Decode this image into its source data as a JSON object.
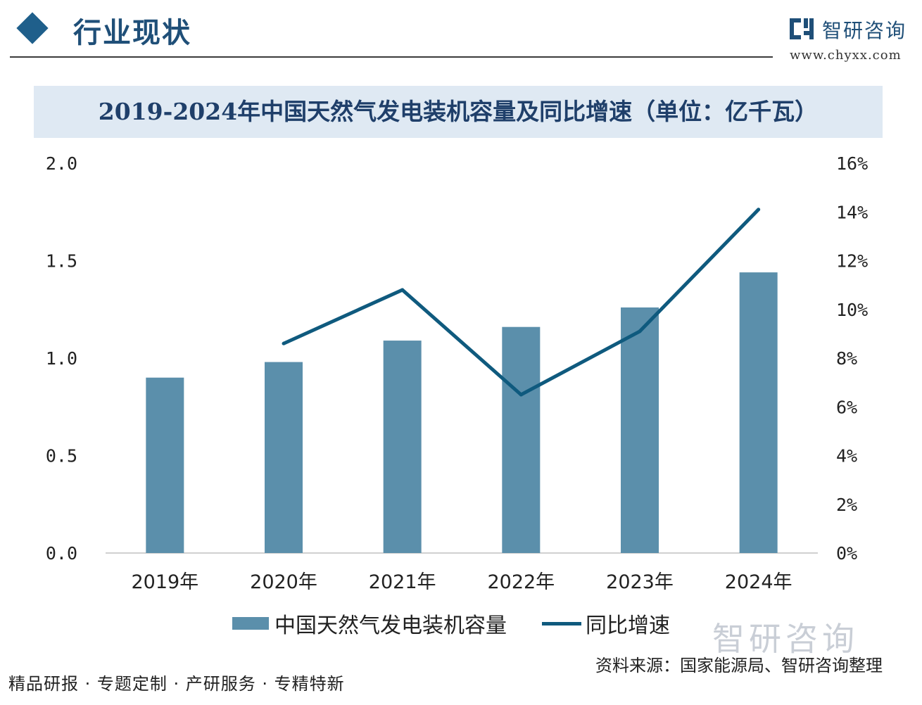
{
  "header": {
    "section_title": "行业现状",
    "brand": "智研咨询",
    "url": "www.chyxx.com",
    "colors": {
      "accent": "#1f5f8b"
    }
  },
  "chart_data": {
    "type": "bar",
    "title": "2019-2024年中国天然气发电装机容量及同比增速（单位：亿千瓦）",
    "categories": [
      "2019年",
      "2020年",
      "2021年",
      "2022年",
      "2023年",
      "2024年"
    ],
    "series": [
      {
        "name": "中国天然气发电装机容量",
        "type": "bar",
        "axis": "left",
        "values": [
          0.9,
          0.98,
          1.09,
          1.16,
          1.26,
          1.44
        ],
        "color": "#5b8fab"
      },
      {
        "name": "同比增速",
        "type": "line",
        "axis": "right",
        "values": [
          null,
          8.6,
          10.8,
          6.5,
          9.1,
          14.1
        ],
        "color": "#0f5a7e"
      }
    ],
    "y_left": {
      "min": 0,
      "max": 2.0,
      "ticks": [
        "0.0",
        "0.5",
        "1.0",
        "1.5",
        "2.0"
      ]
    },
    "y_right": {
      "min": 0,
      "max": 16,
      "ticks": [
        "0%",
        "2%",
        "4%",
        "6%",
        "8%",
        "10%",
        "12%",
        "14%",
        "16%"
      ]
    },
    "grid": false,
    "legend": "bottom"
  },
  "footer": {
    "watermark": "智研咨询",
    "source": "资料来源：国家能源局、智研咨询整理",
    "tagline": "精品研报 · 专题定制 · 产研服务 · 专精特新"
  }
}
